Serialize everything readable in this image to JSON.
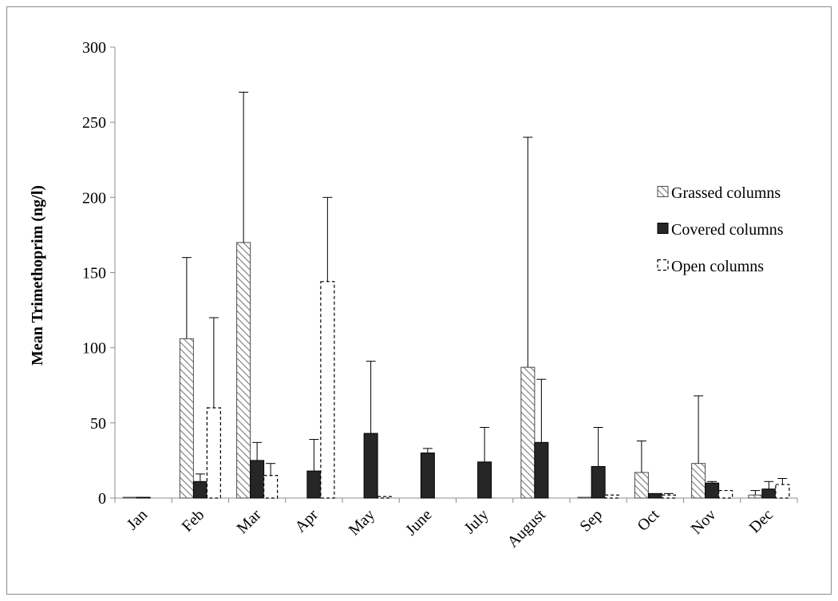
{
  "chart_data": {
    "type": "bar",
    "ylabel": "Mean Trimethoprim (ng/l)",
    "xlabel": "",
    "ylim": [
      0,
      300
    ],
    "yticks": [
      0,
      50,
      100,
      150,
      200,
      250,
      300
    ],
    "grid": false,
    "legend_position": "right",
    "categories": [
      "Jan",
      "Feb",
      "Mar",
      "Apr",
      "May",
      "June",
      "July",
      "August",
      "Sep",
      "Oct",
      "Nov",
      "Dec"
    ],
    "series": [
      {
        "name": "Grassed columns",
        "style": "hatched",
        "values": [
          0.5,
          106,
          170,
          0,
          0,
          0,
          0,
          87,
          0.5,
          17,
          23,
          2
        ],
        "errors": [
          0,
          54,
          100,
          0,
          0,
          0,
          0,
          153,
          0,
          21,
          45,
          3
        ]
      },
      {
        "name": "Covered columns",
        "style": "solid",
        "color": "#262626",
        "values": [
          0.5,
          11,
          25,
          18,
          43,
          30,
          24,
          37,
          21,
          3,
          10,
          6
        ],
        "errors": [
          0,
          5,
          12,
          21,
          48,
          3,
          23,
          42,
          26,
          0,
          1,
          5
        ]
      },
      {
        "name": "Open columns",
        "style": "dashed",
        "values": [
          0,
          60,
          15,
          144,
          1,
          0,
          0,
          0,
          2,
          2,
          5,
          9
        ],
        "errors": [
          0,
          60,
          8,
          56,
          0,
          0,
          0,
          0,
          0,
          1,
          0,
          4
        ]
      }
    ]
  }
}
